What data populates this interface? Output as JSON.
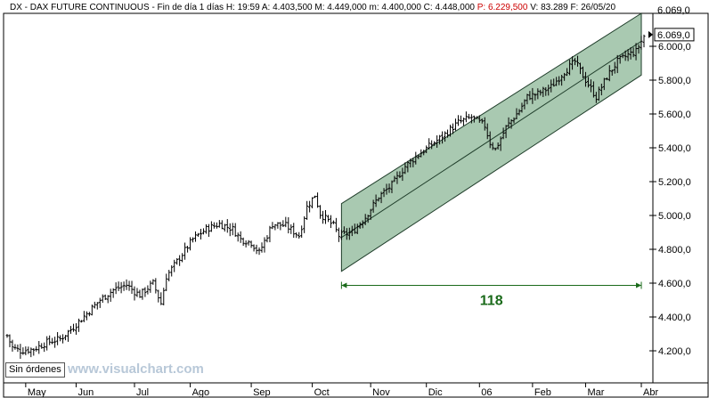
{
  "header": {
    "symbol": "DX - DAX FUTURE CONTINUOUS",
    "timeframe": "Fin de día 1 días",
    "fields": [
      {
        "key": "H:",
        "value": "19:59"
      },
      {
        "key": "A:",
        "value": "4.403,500"
      },
      {
        "key": "M:",
        "value": "4.449,000"
      },
      {
        "key": "m:",
        "value": "4.400,000"
      },
      {
        "key": "C:",
        "value": "4.448,000"
      },
      {
        "key": "P:",
        "value": "6.229,500",
        "color": "#cc0000"
      },
      {
        "key": "V:",
        "value": "83.289"
      },
      {
        "key": "F:",
        "value": "26/05/20"
      }
    ],
    "top_right_label": "6.069,0"
  },
  "status_badge": "Sin órdenes",
  "watermark": "www.visualchart.com",
  "colors": {
    "channel_fill": "#a9c9b1",
    "channel_line": "#1f3d2a",
    "price_bar": "#000000",
    "measure": "#1a6a1a"
  },
  "chart_data": {
    "type": "bar",
    "title": "DX - DAX FUTURE CONTINUOUS",
    "x_tick_labels": [
      "May",
      "Jun",
      "Jul",
      "Ago",
      "Sep",
      "Oct",
      "Nov",
      "Dic",
      "06",
      "Feb",
      "Mar",
      "Abr"
    ],
    "y_tick_labels": [
      "4.200,0",
      "4.400,0",
      "4.600,0",
      "4.800,0",
      "5.000,0",
      "5.200,0",
      "5.400,0",
      "5.600,0",
      "5.800,0",
      "6.000,0"
    ],
    "yticks": [
      4200,
      4400,
      4600,
      4800,
      5000,
      5200,
      5400,
      5600,
      5800,
      6000
    ],
    "ylim": [
      4060,
      6230
    ],
    "price_label": {
      "value": 6069,
      "text": "6.069,0"
    },
    "x_bar_index": {
      "start": 0,
      "end": 240
    },
    "month_starts": [
      7,
      26,
      48,
      69,
      92,
      115,
      137,
      158,
      178,
      198,
      218,
      239
    ],
    "close_anchors": [
      [
        0,
        4290
      ],
      [
        2,
        4220
      ],
      [
        5,
        4200
      ],
      [
        10,
        4210
      ],
      [
        15,
        4250
      ],
      [
        20,
        4270
      ],
      [
        25,
        4340
      ],
      [
        30,
        4420
      ],
      [
        35,
        4500
      ],
      [
        40,
        4560
      ],
      [
        45,
        4590
      ],
      [
        48,
        4550
      ],
      [
        50,
        4530
      ],
      [
        55,
        4600
      ],
      [
        58,
        4480
      ],
      [
        60,
        4640
      ],
      [
        65,
        4750
      ],
      [
        70,
        4860
      ],
      [
        75,
        4920
      ],
      [
        80,
        4950
      ],
      [
        85,
        4920
      ],
      [
        88,
        4860
      ],
      [
        92,
        4840
      ],
      [
        95,
        4780
      ],
      [
        100,
        4950
      ],
      [
        105,
        4940
      ],
      [
        110,
        4880
      ],
      [
        113,
        5050
      ],
      [
        116,
        5120
      ],
      [
        118,
        5010
      ],
      [
        123,
        4940
      ],
      [
        125,
        4880
      ],
      [
        130,
        4900
      ],
      [
        135,
        4990
      ],
      [
        140,
        5110
      ],
      [
        145,
        5180
      ],
      [
        150,
        5290
      ],
      [
        155,
        5360
      ],
      [
        160,
        5420
      ],
      [
        165,
        5480
      ],
      [
        170,
        5550
      ],
      [
        175,
        5580
      ],
      [
        180,
        5530
      ],
      [
        182,
        5430
      ],
      [
        184,
        5390
      ],
      [
        188,
        5520
      ],
      [
        193,
        5620
      ],
      [
        196,
        5700
      ],
      [
        200,
        5720
      ],
      [
        205,
        5760
      ],
      [
        210,
        5850
      ],
      [
        214,
        5910
      ],
      [
        218,
        5800
      ],
      [
        222,
        5700
      ],
      [
        226,
        5820
      ],
      [
        230,
        5910
      ],
      [
        234,
        5950
      ],
      [
        237,
        5970
      ],
      [
        240,
        6060
      ]
    ],
    "regression_channel": {
      "start_bar": 126,
      "end_bar": 239,
      "center_start": 4870,
      "center_end": 6030,
      "half_width": 200
    },
    "measure": {
      "start_bar": 126,
      "end_bar": 239,
      "value": 4587,
      "label": "118"
    }
  }
}
